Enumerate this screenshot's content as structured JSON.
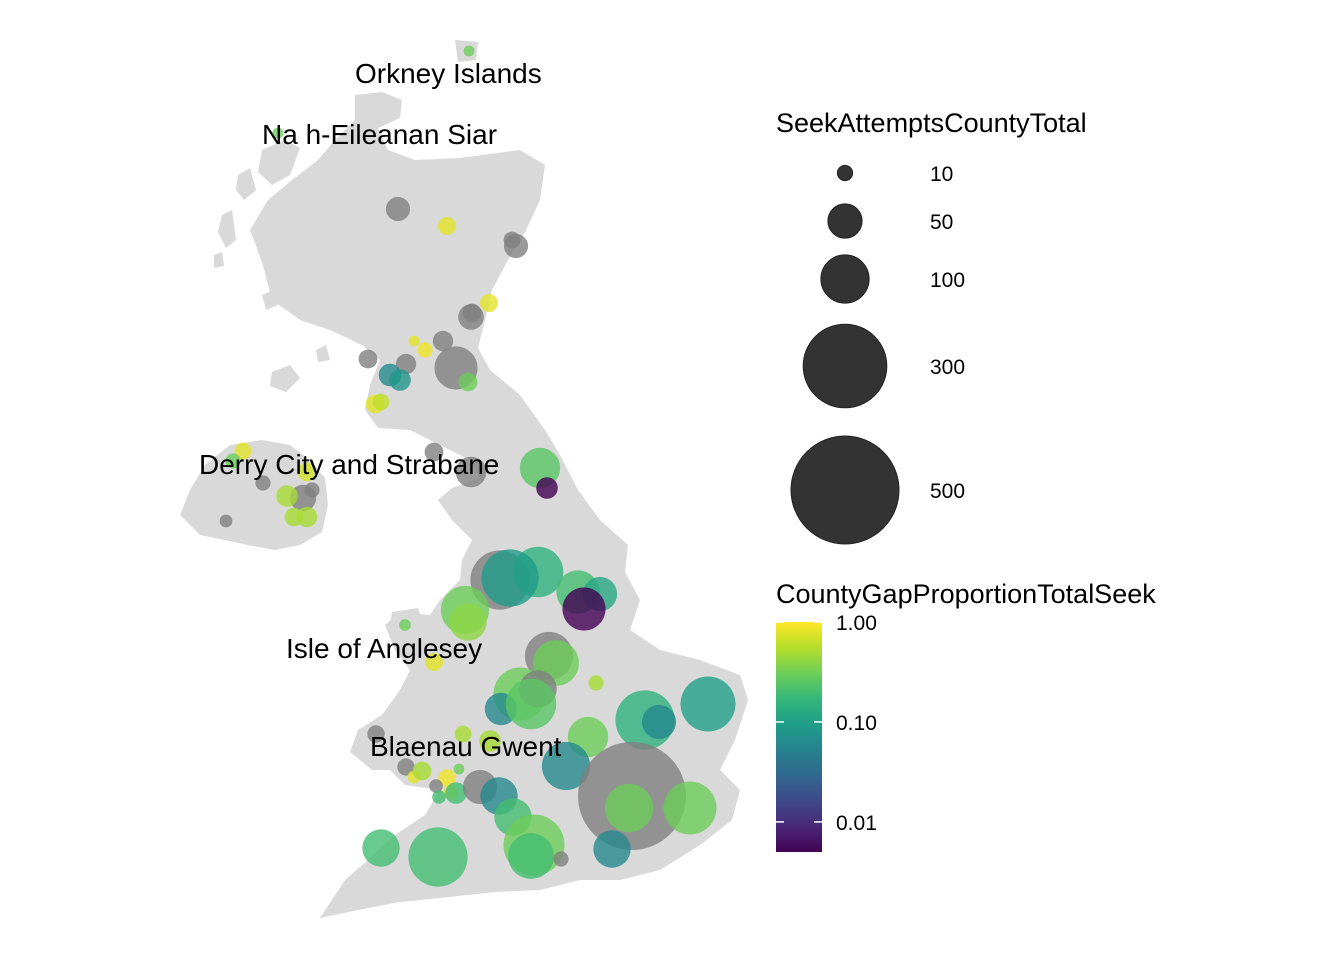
{
  "map": {
    "land_color": "#d9d9d9",
    "na_bubble_color": "#7f7f7f",
    "labels": [
      {
        "id": "orkney",
        "text": "Orkney Islands"
      },
      {
        "id": "siar",
        "text": "Na h-Eileanan Siar"
      },
      {
        "id": "derry",
        "text": "Derry City and Strabane"
      },
      {
        "id": "anglesey",
        "text": "Isle of Anglesey"
      },
      {
        "id": "blaenau",
        "text": "Blaenau Gwent"
      }
    ]
  },
  "legend_size": {
    "title": "SeekAttemptsCountyTotal",
    "entries": [
      {
        "value": 10,
        "label": "10"
      },
      {
        "value": 50,
        "label": "50"
      },
      {
        "value": 100,
        "label": "100"
      },
      {
        "value": 300,
        "label": "300"
      },
      {
        "value": 500,
        "label": "500"
      }
    ],
    "bubble_color": "#333333"
  },
  "legend_color": {
    "title": "CountyGapProportionTotalSeek",
    "scale": "log10",
    "ticks": [
      {
        "value": 1.0,
        "label": "1.00"
      },
      {
        "value": 0.1,
        "label": "0.10"
      },
      {
        "value": 0.01,
        "label": "0.01"
      }
    ],
    "gradient_stops": [
      "#fde725",
      "#b5de2b",
      "#6ece58",
      "#35b779",
      "#1f9e89",
      "#26828e",
      "#31688e",
      "#3e4989",
      "#482878",
      "#440154"
    ]
  }
}
